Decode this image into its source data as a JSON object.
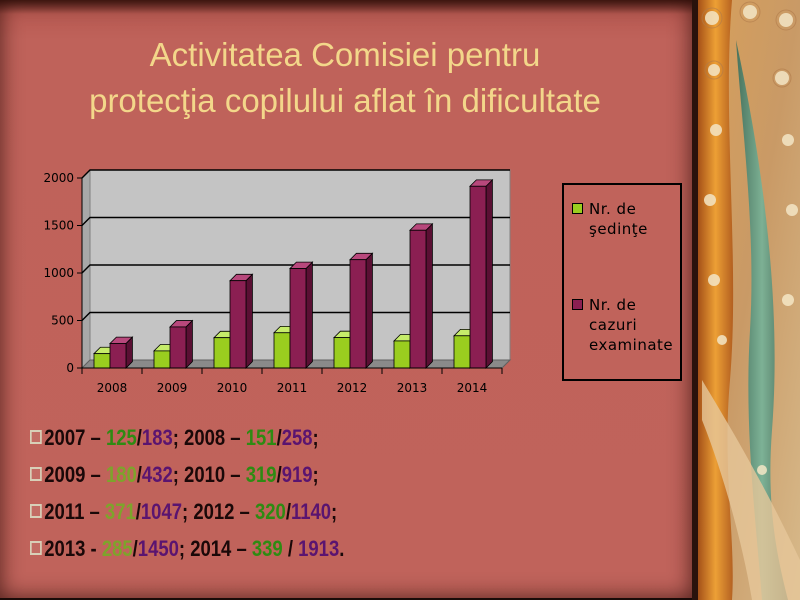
{
  "slide": {
    "title_line1": "Activitatea Comisiei pentru",
    "title_line2": "protecţia copilului aflat în dificultate",
    "colors": {
      "title": "#f3d78a",
      "background": "#c0635b",
      "series_meetings": "#9acd1f",
      "series_cases": "#8b1f52",
      "text_green": "#2e8b12",
      "text_purple": "#5a1470"
    }
  },
  "chart_data": {
    "type": "bar",
    "categories": [
      "2008",
      "2009",
      "2010",
      "2011",
      "2012",
      "2013",
      "2014"
    ],
    "series": [
      {
        "name": "Nr. de şedinţe",
        "values": [
          151,
          180,
          319,
          371,
          320,
          285,
          339
        ]
      },
      {
        "name": "Nr. de cazuri examinate",
        "values": [
          258,
          432,
          919,
          1047,
          1140,
          1450,
          1913
        ]
      }
    ],
    "yticks": [
      "0",
      "500",
      "1000",
      "1500",
      "2000"
    ],
    "ylim": [
      0,
      2000
    ],
    "grid": true,
    "legend_position": "right",
    "three_d": true
  },
  "legend": {
    "item1": "Nr. de şedinţe",
    "item2": "Nr. de cazuri examinate"
  },
  "stats": [
    {
      "parts": [
        {
          "t": "2007 – ",
          "c": ""
        },
        {
          "t": "125",
          "c": "g"
        },
        {
          "t": "/",
          "c": ""
        },
        {
          "t": "183",
          "c": "p"
        },
        {
          "t": "; 2008 – ",
          "c": ""
        },
        {
          "t": "151",
          "c": "g"
        },
        {
          "t": "/",
          "c": ""
        },
        {
          "t": "258",
          "c": "p"
        },
        {
          "t": ";",
          "c": ""
        }
      ]
    },
    {
      "parts": [
        {
          "t": "2009 – ",
          "c": ""
        },
        {
          "t": "180",
          "c": "g-l"
        },
        {
          "t": "/",
          "c": ""
        },
        {
          "t": "432",
          "c": "p"
        },
        {
          "t": "; 2010 – ",
          "c": ""
        },
        {
          "t": "319",
          "c": "g"
        },
        {
          "t": "/",
          "c": ""
        },
        {
          "t": "919",
          "c": "p"
        },
        {
          "t": ";",
          "c": ""
        }
      ]
    },
    {
      "parts": [
        {
          "t": "2011 – ",
          "c": ""
        },
        {
          "t": "371",
          "c": "g-l"
        },
        {
          "t": "/",
          "c": ""
        },
        {
          "t": "1047",
          "c": "p"
        },
        {
          "t": "; 2012 – ",
          "c": ""
        },
        {
          "t": "320",
          "c": "g"
        },
        {
          "t": "/",
          "c": ""
        },
        {
          "t": "1140",
          "c": "p"
        },
        {
          "t": ";",
          "c": ""
        }
      ]
    },
    {
      "parts": [
        {
          "t": "2013 - ",
          "c": ""
        },
        {
          "t": "285",
          "c": "g-l"
        },
        {
          "t": "/",
          "c": ""
        },
        {
          "t": "1450",
          "c": "p"
        },
        {
          "t": "; 2014 – ",
          "c": ""
        },
        {
          "t": "339",
          "c": "g"
        },
        {
          "t": " / ",
          "c": ""
        },
        {
          "t": "1913",
          "c": "p"
        },
        {
          "t": ".",
          "c": ""
        }
      ]
    }
  ]
}
